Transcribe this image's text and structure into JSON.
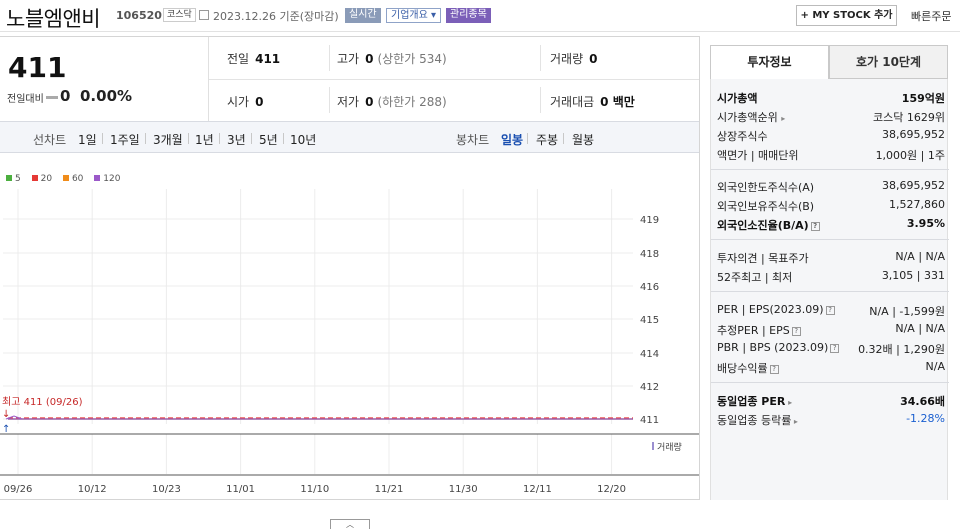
{
  "header": {
    "stock_name": "노블엠앤비",
    "stock_code": "106520",
    "market_badge": "코스닥",
    "date_text": "2023.12.26  기준(장마감)",
    "tags": [
      {
        "label": "실시간",
        "bg": "#8a9bb8",
        "color": "#ffffff"
      },
      {
        "label": "기업개요 ▾",
        "bg": "#ffffff",
        "color": "#3b5fa8"
      },
      {
        "label": "관리종목",
        "bg": "#7b5fb8",
        "color": "#ffffff"
      }
    ],
    "my_stock_label": "+ MY STOCK 추가",
    "quick_order_label": "빠른주문"
  },
  "quote": {
    "price": "411",
    "change_label": "전일대비",
    "change_value": "0",
    "change_rate": "0.00%",
    "stats": {
      "prev_close_label": "전일",
      "prev_close": "411",
      "high_label": "고가",
      "high": "0",
      "high_limit": "(상한가 534)",
      "volume_label": "거래량",
      "volume": "0",
      "open_label": "시가",
      "open": "0",
      "low_label": "저가",
      "low": "0",
      "low_limit": "(하한가 288)",
      "amount_label": "거래대금",
      "amount": "0 백만"
    }
  },
  "periods": {
    "line_label": "선차트",
    "line_items": [
      "1일",
      "1주일",
      "3개월",
      "1년",
      "3년",
      "5년",
      "10년"
    ],
    "candle_label": "봉차트",
    "candle_items": [
      "일봉",
      "주봉",
      "월봉"
    ],
    "active": "일봉"
  },
  "legend": [
    {
      "label": "5",
      "color": "#4caf3f"
    },
    {
      "label": "20",
      "color": "#e53935"
    },
    {
      "label": "60",
      "color": "#f08c1a"
    },
    {
      "label": "120",
      "color": "#9b59c9"
    }
  ],
  "chart_data": {
    "type": "line",
    "x_ticks": [
      "09/26",
      "10/12",
      "10/23",
      "11/01",
      "11/10",
      "11/21",
      "11/30",
      "12/11",
      "12/20"
    ],
    "y_ticks": [
      419,
      418,
      416,
      415,
      414,
      412,
      411
    ],
    "max_annotation": "최고 411 (09/26)",
    "volume_label": "거래량",
    "series": [
      {
        "name": "5",
        "color": "#4caf3f",
        "value": 411
      },
      {
        "name": "20",
        "color": "#e53935",
        "value": 411
      },
      {
        "name": "60",
        "color": "#f08c1a",
        "value": 411
      },
      {
        "name": "120",
        "color": "#9b59c9",
        "value": 411
      }
    ]
  },
  "invest": {
    "tab_active": "투자정보",
    "tab_other": "호가 10단계",
    "market_cap_label": "시가총액",
    "market_cap": "159억원",
    "rank_label": "시가총액순위",
    "rank": "코스닥 1629위",
    "shares_label": "상장주식수",
    "shares": "38,695,952",
    "par_label": "액면가 | 매매단위",
    "par": "1,000원 | 1주",
    "foreign_limit_label": "외국인한도주식수(A)",
    "foreign_limit": "38,695,952",
    "foreign_hold_label": "외국인보유주식수(B)",
    "foreign_hold": "1,527,860",
    "foreign_ratio_label": "외국인소진율(B/A)",
    "foreign_ratio": "3.95%",
    "opinion_label": "투자의견 | 목표주가",
    "opinion": "N/A | N/A",
    "week52_label": "52주최고 | 최저",
    "week52": "3,105 | 331",
    "per_label": "PER | EPS(2023.09)",
    "per": "N/A | -1,599원",
    "est_per_label": "추정PER | EPS",
    "est_per": "N/A | N/A",
    "pbr_label": "PBR | BPS (2023.09)",
    "pbr": "0.32배 | 1,290원",
    "div_label": "배당수익률",
    "div": "N/A",
    "industry_per_label": "동일업종 PER",
    "industry_per": "34.66배",
    "industry_rate_label": "동일업종 등락률",
    "industry_rate": "-1.28%"
  }
}
